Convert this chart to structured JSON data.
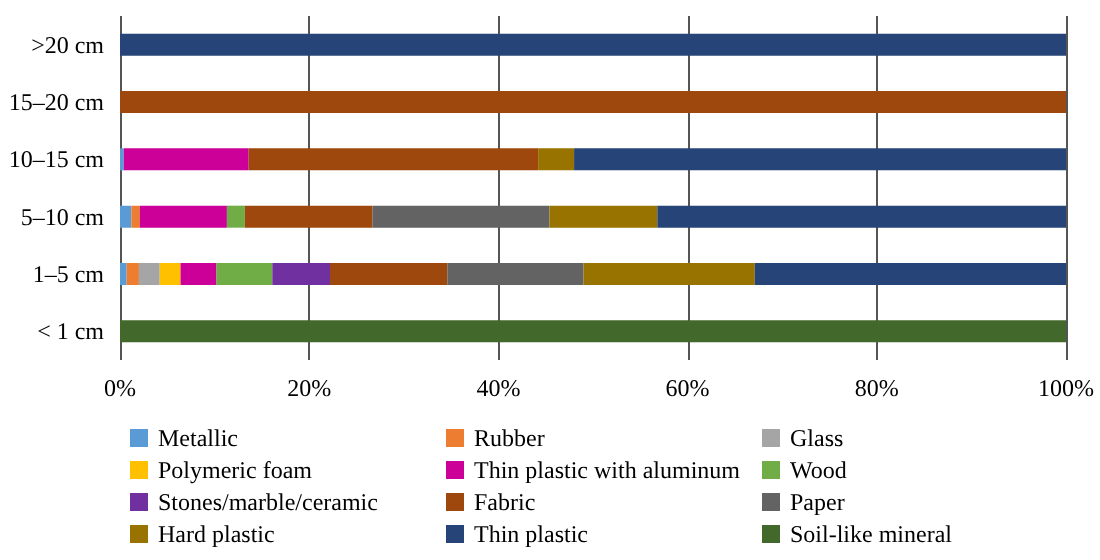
{
  "chart_data": {
    "type": "bar",
    "orientation": "horizontal",
    "stacked": true,
    "categories": [
      ">20 cm",
      "15–20 cm",
      "10–15 cm",
      "5–10 cm",
      "1–5 cm",
      "< 1 cm"
    ],
    "series": [
      {
        "name": "Metallic",
        "color": "#5b9bd5",
        "values": [
          0,
          0,
          0.4,
          1.2,
          0.7,
          0
        ]
      },
      {
        "name": "Rubber",
        "color": "#ed7d31",
        "values": [
          0,
          0,
          0,
          0.9,
          1.3,
          0
        ]
      },
      {
        "name": "Glass",
        "color": "#a5a5a5",
        "values": [
          0,
          0,
          0,
          0,
          2.2,
          0
        ]
      },
      {
        "name": "Polymeric foam",
        "color": "#ffc000",
        "values": [
          0,
          0,
          0,
          0,
          2.2,
          0
        ]
      },
      {
        "name": "Thin plastic with aluminum",
        "color": "#cc0099",
        "values": [
          0,
          0,
          13.2,
          9.2,
          3.8,
          0
        ]
      },
      {
        "name": "Wood",
        "color": "#70ad47",
        "values": [
          0,
          0,
          0,
          1.9,
          5.9,
          0
        ]
      },
      {
        "name": "Stones/marble/ceramic",
        "color": "#7030a0",
        "values": [
          0,
          0,
          0,
          0,
          6.1,
          0
        ]
      },
      {
        "name": "Fabric",
        "color": "#9e480e",
        "values": [
          0,
          100,
          30.6,
          13.5,
          12.4,
          0
        ]
      },
      {
        "name": "Paper",
        "color": "#636363",
        "values": [
          0,
          0,
          0,
          18.7,
          14.4,
          0
        ]
      },
      {
        "name": "Hard plastic",
        "color": "#997300",
        "values": [
          0,
          0,
          3.8,
          11.4,
          18.1,
          0
        ]
      },
      {
        "name": "Thin plastic",
        "color": "#264478",
        "values": [
          100,
          0,
          52,
          43.2,
          32.9,
          0
        ]
      },
      {
        "name": "Soil-like mineral",
        "color": "#43682b",
        "values": [
          0,
          0,
          0,
          0,
          0,
          100
        ]
      }
    ],
    "xlim": [
      0,
      100
    ],
    "xticks": [
      {
        "value": 0,
        "label": "0%"
      },
      {
        "value": 20,
        "label": "20%"
      },
      {
        "value": 40,
        "label": "40%"
      },
      {
        "value": 60,
        "label": "60%"
      },
      {
        "value": 80,
        "label": "80%"
      },
      {
        "value": 100,
        "label": "100%"
      }
    ],
    "grid": "x",
    "legend": "bottom"
  }
}
